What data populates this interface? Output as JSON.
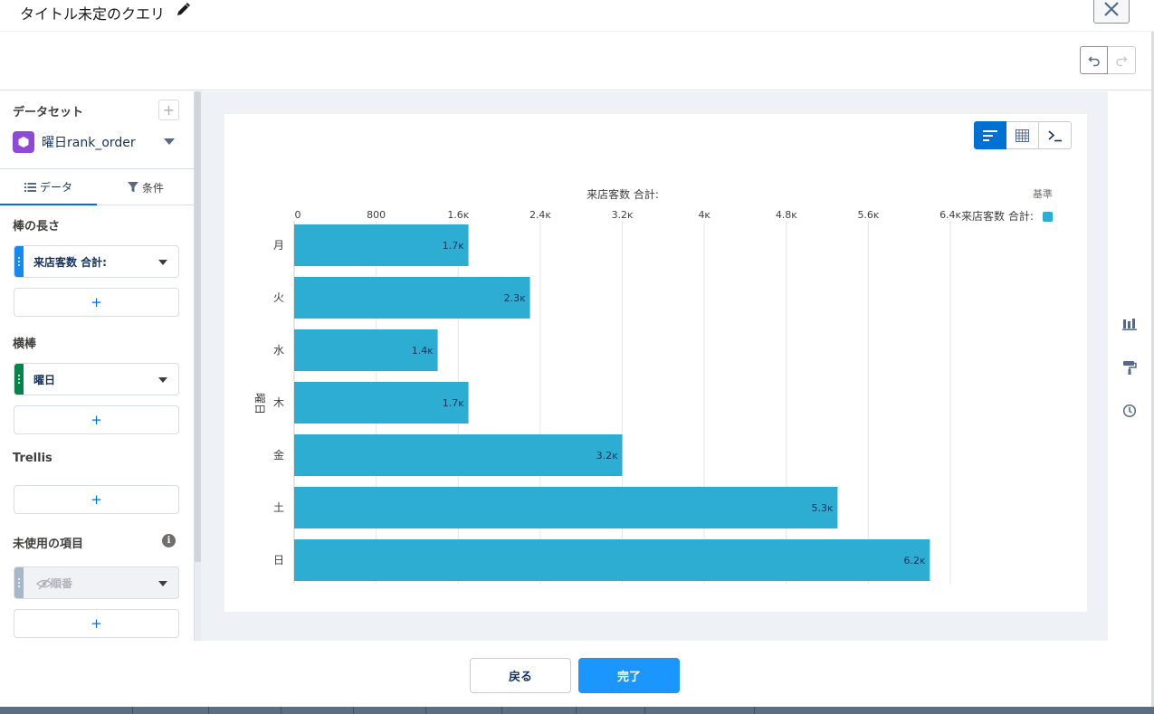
{
  "header": {
    "query_title": "タイトル未定のクエリ"
  },
  "sidebar": {
    "dataset_label": "データセット",
    "dataset_name": "曜日rank_order",
    "tabs": [
      {
        "label": "データ",
        "active": true
      },
      {
        "label": "条件",
        "active": false
      }
    ],
    "bar_length_label": "棒の長さ",
    "bar_length_field": "来店客数 合計:",
    "bars_label": "横棒",
    "bars_field": "曜日",
    "trellis_label": "Trellis",
    "unused_label": "未使用の項目",
    "unused_field": "順番",
    "add_label": "+",
    "info_label": "i"
  },
  "colors": {
    "bar": "#2dadd2",
    "measure_handle": "#1589ee",
    "dimension_handle": "#04844b",
    "disabled_handle": "#a8b7c7",
    "primary": "#0070d2"
  },
  "chart_data": {
    "type": "bar",
    "orientation": "horizontal",
    "title": "来店客数 合計:",
    "xlabel": "来店客数 合計:",
    "ylabel": "曜日",
    "categories": [
      "月",
      "火",
      "水",
      "木",
      "金",
      "土",
      "日"
    ],
    "values": [
      1700,
      2300,
      1400,
      1700,
      3200,
      5300,
      6200
    ],
    "value_labels": [
      "1.7ĸ",
      "2.3ĸ",
      "1.4ĸ",
      "1.7ĸ",
      "3.2ĸ",
      "5.3ĸ",
      "6.2ĸ"
    ],
    "xlim": [
      0,
      6400
    ],
    "ticks": [
      0,
      800,
      1600,
      2400,
      3200,
      4000,
      4800,
      5600,
      6400
    ],
    "tick_labels": [
      "0",
      "800",
      "1.6ĸ",
      "2.4ĸ",
      "3.2ĸ",
      "4ĸ",
      "4.8ĸ",
      "5.6ĸ",
      "6.4ĸ"
    ],
    "grid": true,
    "legend": {
      "title": "基準",
      "items": [
        {
          "name": "来店客数 合計:",
          "color": "#2dadd2"
        }
      ],
      "position": "top-right"
    }
  },
  "footer": {
    "back_label": "戻る",
    "done_label": "完了"
  }
}
